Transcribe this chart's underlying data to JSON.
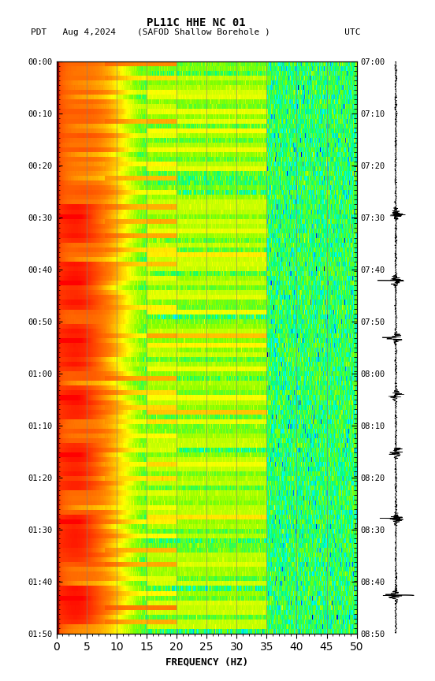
{
  "title_line1": "PL11C HHE NC 01",
  "title_line2": "PDT   Aug 4,2024    (SAFOD Shallow Borehole )              UTC",
  "xlabel": "FREQUENCY (HZ)",
  "freq_min": 0,
  "freq_max": 50,
  "freq_ticks": [
    0,
    5,
    10,
    15,
    20,
    25,
    30,
    35,
    40,
    45,
    50
  ],
  "freq_grid_lines": [
    5,
    10,
    15,
    20,
    25,
    30,
    35,
    40,
    45
  ],
  "time_left_labels": [
    "00:00",
    "00:10",
    "00:20",
    "00:30",
    "00:40",
    "00:50",
    "01:00",
    "01:10",
    "01:20",
    "01:30",
    "01:40",
    "01:50"
  ],
  "time_right_labels": [
    "07:00",
    "07:10",
    "07:20",
    "07:30",
    "07:40",
    "07:50",
    "08:00",
    "08:10",
    "08:20",
    "08:30",
    "08:40",
    "08:50"
  ],
  "n_time": 120,
  "n_freq": 500,
  "background_color": "#ffffff",
  "fig_width": 5.52,
  "fig_height": 8.64
}
